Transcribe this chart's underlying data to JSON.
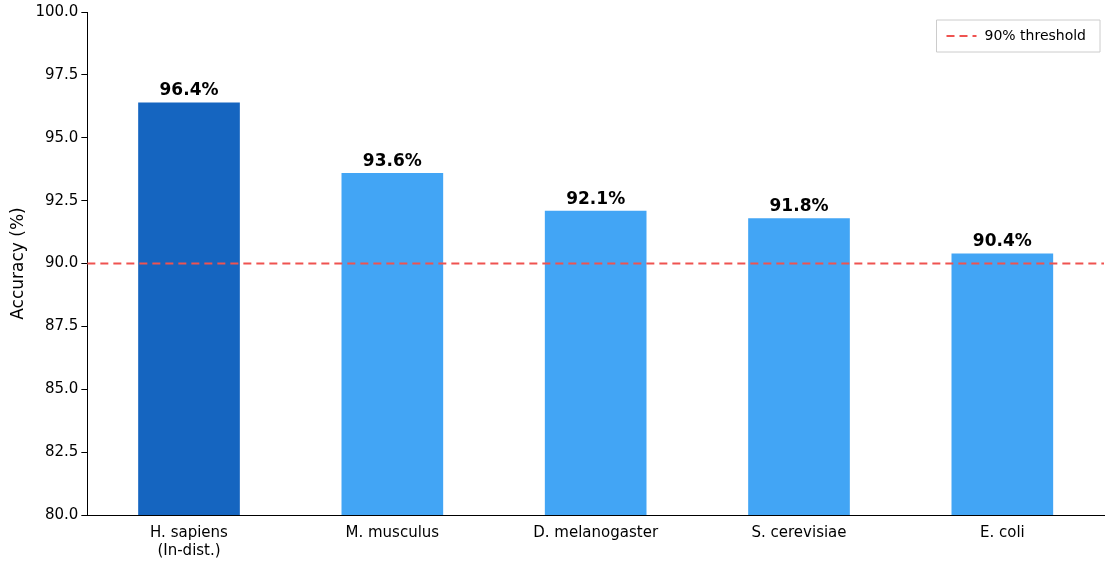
{
  "chart_data": {
    "type": "bar",
    "ylabel": "Accuracy (%)",
    "categories": [
      "H. sapiens\n(In-dist.)",
      "M. musculus",
      "D. melanogaster",
      "S. cerevisiae",
      "E. coli"
    ],
    "values": [
      96.4,
      93.6,
      92.1,
      91.8,
      90.4
    ],
    "colors": [
      "#1565c0",
      "#42a5f5",
      "#42a5f5",
      "#42a5f5",
      "#42a5f5"
    ],
    "value_labels": [
      "96.4%",
      "93.6%",
      "92.1%",
      "91.8%",
      "90.4%"
    ],
    "ylim": [
      80,
      100
    ],
    "yticks": [
      {
        "value": 80,
        "label": "80.0"
      },
      {
        "value": 82.5,
        "label": "82.5"
      },
      {
        "value": 85,
        "label": "85.0"
      },
      {
        "value": 87.5,
        "label": "87.5"
      },
      {
        "value": 90,
        "label": "90.0"
      },
      {
        "value": 92.5,
        "label": "92.5"
      },
      {
        "value": 95,
        "label": "95.0"
      },
      {
        "value": 97.5,
        "label": "97.5"
      },
      {
        "value": 100,
        "label": "100.0"
      }
    ],
    "ref_lines": [
      {
        "axis": "y",
        "value": 90,
        "label": "90% threshold",
        "color": "#ef5350",
        "line_style": "dashed"
      }
    ],
    "legend": "top right",
    "grid": false
  }
}
